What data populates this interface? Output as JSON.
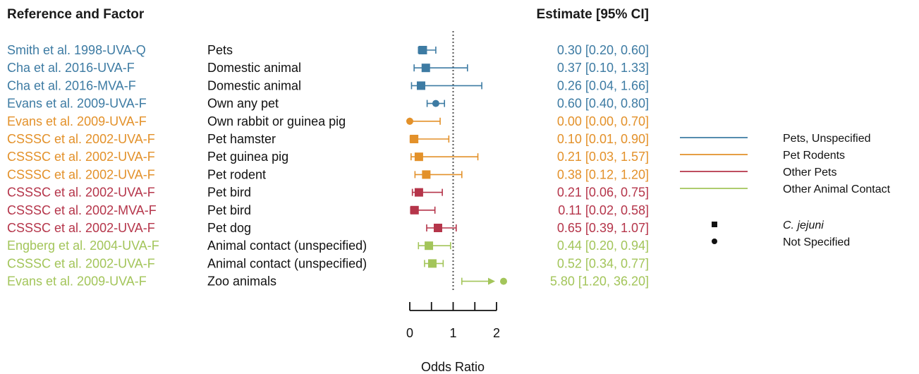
{
  "chart_data": {
    "type": "forest",
    "header_left": "Reference and Factor",
    "header_right": "Estimate [95% CI]",
    "xlabel": "Odds Ratio",
    "xticks": [
      0,
      1,
      2
    ],
    "xlim": [
      0,
      2
    ],
    "reference_line": 1,
    "group_colors": {
      "Pets, Unspecified": "#3d7ba3",
      "Pet Rodents": "#e3912a",
      "Other Pets": "#b5354a",
      "Other Animal Contact": "#a3c55a"
    },
    "rows": [
      {
        "reference": "Smith et al. 1998-UVA-Q",
        "factor": "Pets",
        "estimate": 0.3,
        "lower": 0.2,
        "upper": 0.6,
        "est_text": "0.30 [0.20,  0.60]",
        "group": "Pets, Unspecified",
        "marker": "square"
      },
      {
        "reference": "Cha et al. 2016-UVA-F",
        "factor": "Domestic animal",
        "estimate": 0.37,
        "lower": 0.1,
        "upper": 1.33,
        "est_text": "0.37 [0.10,  1.33]",
        "group": "Pets, Unspecified",
        "marker": "square"
      },
      {
        "reference": "Cha et al. 2016-MVA-F",
        "factor": "Domestic animal",
        "estimate": 0.26,
        "lower": 0.04,
        "upper": 1.66,
        "est_text": "0.26 [0.04,  1.66]",
        "group": "Pets, Unspecified",
        "marker": "square"
      },
      {
        "reference": "Evans et al. 2009-UVA-F",
        "factor": "Own any pet",
        "estimate": 0.6,
        "lower": 0.4,
        "upper": 0.8,
        "est_text": "0.60 [0.40,  0.80]",
        "group": "Pets, Unspecified",
        "marker": "circle"
      },
      {
        "reference": "Evans et al. 2009-UVA-F",
        "factor": "Own rabbit or guinea pig",
        "estimate": 0.0,
        "lower": 0.0,
        "upper": 0.7,
        "est_text": "0.00 [0.00,  0.70]",
        "group": "Pet Rodents",
        "marker": "circle"
      },
      {
        "reference": "CSSSC et al. 2002-UVA-F",
        "factor": "Pet hamster",
        "estimate": 0.1,
        "lower": 0.01,
        "upper": 0.9,
        "est_text": "0.10 [0.01,  0.90]",
        "group": "Pet Rodents",
        "marker": "square"
      },
      {
        "reference": "CSSSC et al. 2002-UVA-F",
        "factor": "Pet guinea pig",
        "estimate": 0.21,
        "lower": 0.03,
        "upper": 1.57,
        "est_text": "0.21 [0.03,  1.57]",
        "group": "Pet Rodents",
        "marker": "square"
      },
      {
        "reference": "CSSSC et al. 2002-UVA-F",
        "factor": "Pet rodent",
        "estimate": 0.38,
        "lower": 0.12,
        "upper": 1.2,
        "est_text": "0.38 [0.12,  1.20]",
        "group": "Pet Rodents",
        "marker": "square"
      },
      {
        "reference": "CSSSC et al. 2002-UVA-F",
        "factor": "Pet bird",
        "estimate": 0.21,
        "lower": 0.06,
        "upper": 0.75,
        "est_text": "0.21 [0.06,  0.75]",
        "group": "Other Pets",
        "marker": "square"
      },
      {
        "reference": "CSSSC et al. 2002-MVA-F",
        "factor": "Pet bird",
        "estimate": 0.11,
        "lower": 0.02,
        "upper": 0.58,
        "est_text": "0.11 [0.02,  0.58]",
        "group": "Other Pets",
        "marker": "square"
      },
      {
        "reference": "CSSSC et al. 2002-UVA-F",
        "factor": "Pet dog",
        "estimate": 0.65,
        "lower": 0.39,
        "upper": 1.07,
        "est_text": "0.65 [0.39,  1.07]",
        "group": "Other Pets",
        "marker": "square"
      },
      {
        "reference": "Engberg et al. 2004-UVA-F",
        "factor": "Animal contact (unspecified)",
        "estimate": 0.44,
        "lower": 0.2,
        "upper": 0.94,
        "est_text": "0.44 [0.20,  0.94]",
        "group": "Other Animal Contact",
        "marker": "square"
      },
      {
        "reference": "CSSSC et al. 2002-UVA-F",
        "factor": "Animal contact (unspecified)",
        "estimate": 0.52,
        "lower": 0.34,
        "upper": 0.77,
        "est_text": "0.52 [0.34,  0.77]",
        "group": "Other Animal Contact",
        "marker": "square"
      },
      {
        "reference": "Evans et al. 2009-UVA-F",
        "factor": "Zoo animals",
        "estimate": 5.8,
        "lower": 1.2,
        "upper": 36.2,
        "est_text": "5.80 [1.20, 36.20]",
        "group": "Other Animal Contact",
        "marker": "circle",
        "truncated_right": true
      }
    ],
    "legend": {
      "placement": "right",
      "groups": [
        "Pets, Unspecified",
        "Pet Rodents",
        "Other Pets",
        "Other Animal Contact"
      ],
      "markers": [
        {
          "shape": "square",
          "label": "C. jejuni",
          "italic": true
        },
        {
          "shape": "circle",
          "label": "Not Specified",
          "italic": false
        }
      ]
    }
  }
}
